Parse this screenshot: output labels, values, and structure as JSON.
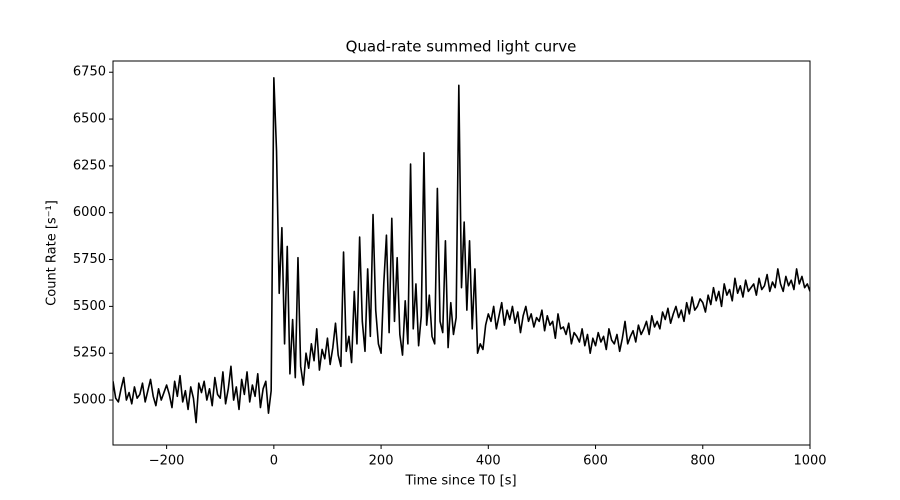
{
  "chart_data": {
    "type": "line",
    "title": "Quad-rate summed light curve",
    "xlabel": "Time since T0 [s]",
    "ylabel": "Count Rate [s⁻¹]",
    "xlim": [
      -300,
      1000
    ],
    "ylim": [
      4760,
      6810
    ],
    "xticks": [
      {
        "value": -200,
        "label": "−200"
      },
      0,
      200,
      400,
      600,
      800,
      1000
    ],
    "yticks": [
      5000,
      5250,
      5500,
      5750,
      6000,
      6250,
      6500,
      6750
    ],
    "grid": false,
    "series": [
      {
        "name": "Quad-rate summed",
        "color": "#000000",
        "x": [
          -300,
          -295,
          -290,
          -285,
          -280,
          -275,
          -270,
          -265,
          -260,
          -255,
          -250,
          -245,
          -240,
          -235,
          -230,
          -225,
          -220,
          -215,
          -210,
          -205,
          -200,
          -195,
          -190,
          -185,
          -180,
          -175,
          -170,
          -165,
          -160,
          -155,
          -150,
          -145,
          -140,
          -135,
          -130,
          -125,
          -120,
          -115,
          -110,
          -105,
          -100,
          -95,
          -90,
          -85,
          -80,
          -75,
          -70,
          -65,
          -60,
          -55,
          -50,
          -45,
          -40,
          -35,
          -30,
          -25,
          -20,
          -15,
          -10,
          -5,
          0,
          5,
          10,
          15,
          20,
          25,
          30,
          35,
          40,
          45,
          50,
          55,
          60,
          65,
          70,
          75,
          80,
          85,
          90,
          95,
          100,
          105,
          110,
          115,
          120,
          125,
          130,
          135,
          140,
          145,
          150,
          155,
          160,
          165,
          170,
          175,
          180,
          185,
          190,
          195,
          200,
          205,
          210,
          215,
          220,
          225,
          230,
          235,
          240,
          245,
          250,
          255,
          260,
          265,
          270,
          275,
          280,
          285,
          290,
          295,
          300,
          305,
          310,
          315,
          320,
          325,
          330,
          335,
          340,
          345,
          350,
          355,
          360,
          365,
          370,
          375,
          380,
          385,
          390,
          395,
          400,
          405,
          410,
          415,
          420,
          425,
          430,
          435,
          440,
          445,
          450,
          455,
          460,
          465,
          470,
          475,
          480,
          485,
          490,
          495,
          500,
          505,
          510,
          515,
          520,
          525,
          530,
          535,
          540,
          545,
          550,
          555,
          560,
          565,
          570,
          575,
          580,
          585,
          590,
          595,
          600,
          605,
          610,
          615,
          620,
          625,
          630,
          635,
          640,
          645,
          650,
          655,
          660,
          665,
          670,
          675,
          680,
          685,
          690,
          695,
          700,
          705,
          710,
          715,
          720,
          725,
          730,
          735,
          740,
          745,
          750,
          755,
          760,
          765,
          770,
          775,
          780,
          785,
          790,
          795,
          800,
          805,
          810,
          815,
          820,
          825,
          830,
          835,
          840,
          845,
          850,
          855,
          860,
          865,
          870,
          875,
          880,
          885,
          890,
          895,
          900,
          905,
          910,
          915,
          920,
          925,
          930,
          935,
          940,
          945,
          950,
          955,
          960,
          965,
          970,
          975,
          980,
          985,
          990,
          995,
          1000
        ],
        "values": [
          5100,
          5010,
          4990,
          5060,
          5120,
          5000,
          5040,
          4980,
          5070,
          5010,
          5030,
          5090,
          4990,
          5050,
          5110,
          5020,
          4970,
          5060,
          5000,
          5040,
          5080,
          5030,
          4960,
          5100,
          5020,
          5130,
          4990,
          5050,
          4950,
          5070,
          5010,
          4880,
          5090,
          5040,
          5100,
          5000,
          5060,
          4970,
          5120,
          5030,
          5010,
          5150,
          4980,
          5060,
          5180,
          5000,
          5070,
          4950,
          5110,
          5030,
          5150,
          4990,
          5080,
          5020,
          5140,
          4960,
          5060,
          5100,
          4930,
          5050,
          6720,
          6330,
          5570,
          5920,
          5300,
          5820,
          5140,
          5430,
          5120,
          5760,
          5180,
          5080,
          5250,
          5170,
          5300,
          5210,
          5380,
          5160,
          5270,
          5220,
          5330,
          5190,
          5280,
          5410,
          5240,
          5180,
          5790,
          5260,
          5340,
          5200,
          5580,
          5300,
          5870,
          5420,
          5260,
          5700,
          5340,
          5990,
          5480,
          5300,
          5250,
          5620,
          5880,
          5360,
          5970,
          5420,
          5760,
          5350,
          5240,
          5530,
          5300,
          6260,
          5380,
          5620,
          5290,
          5450,
          6320,
          5400,
          5560,
          5340,
          5300,
          6130,
          5420,
          5360,
          5850,
          5280,
          5520,
          5350,
          5440,
          6680,
          5600,
          5950,
          5480,
          5850,
          5380,
          5700,
          5250,
          5300,
          5270,
          5400,
          5460,
          5420,
          5500,
          5380,
          5450,
          5520,
          5400,
          5480,
          5430,
          5500,
          5410,
          5470,
          5360,
          5450,
          5500,
          5420,
          5460,
          5390,
          5440,
          5420,
          5480,
          5370,
          5450,
          5400,
          5420,
          5330,
          5460,
          5380,
          5390,
          5350,
          5410,
          5300,
          5360,
          5340,
          5310,
          5380,
          5290,
          5350,
          5250,
          5330,
          5290,
          5360,
          5310,
          5340,
          5270,
          5380,
          5320,
          5300,
          5350,
          5260,
          5330,
          5420,
          5300,
          5340,
          5370,
          5310,
          5400,
          5350,
          5380,
          5420,
          5350,
          5450,
          5390,
          5420,
          5380,
          5470,
          5430,
          5490,
          5410,
          5460,
          5500,
          5440,
          5480,
          5420,
          5520,
          5460,
          5550,
          5480,
          5500,
          5540,
          5520,
          5470,
          5560,
          5510,
          5600,
          5530,
          5580,
          5500,
          5620,
          5560,
          5590,
          5530,
          5650,
          5570,
          5610,
          5550,
          5640,
          5580,
          5600,
          5620,
          5560,
          5650,
          5590,
          5610,
          5670,
          5580,
          5630,
          5600,
          5700,
          5620,
          5580,
          5660,
          5610,
          5640,
          5590,
          5700,
          5620,
          5660,
          5600,
          5620,
          5580
        ]
      }
    ]
  }
}
